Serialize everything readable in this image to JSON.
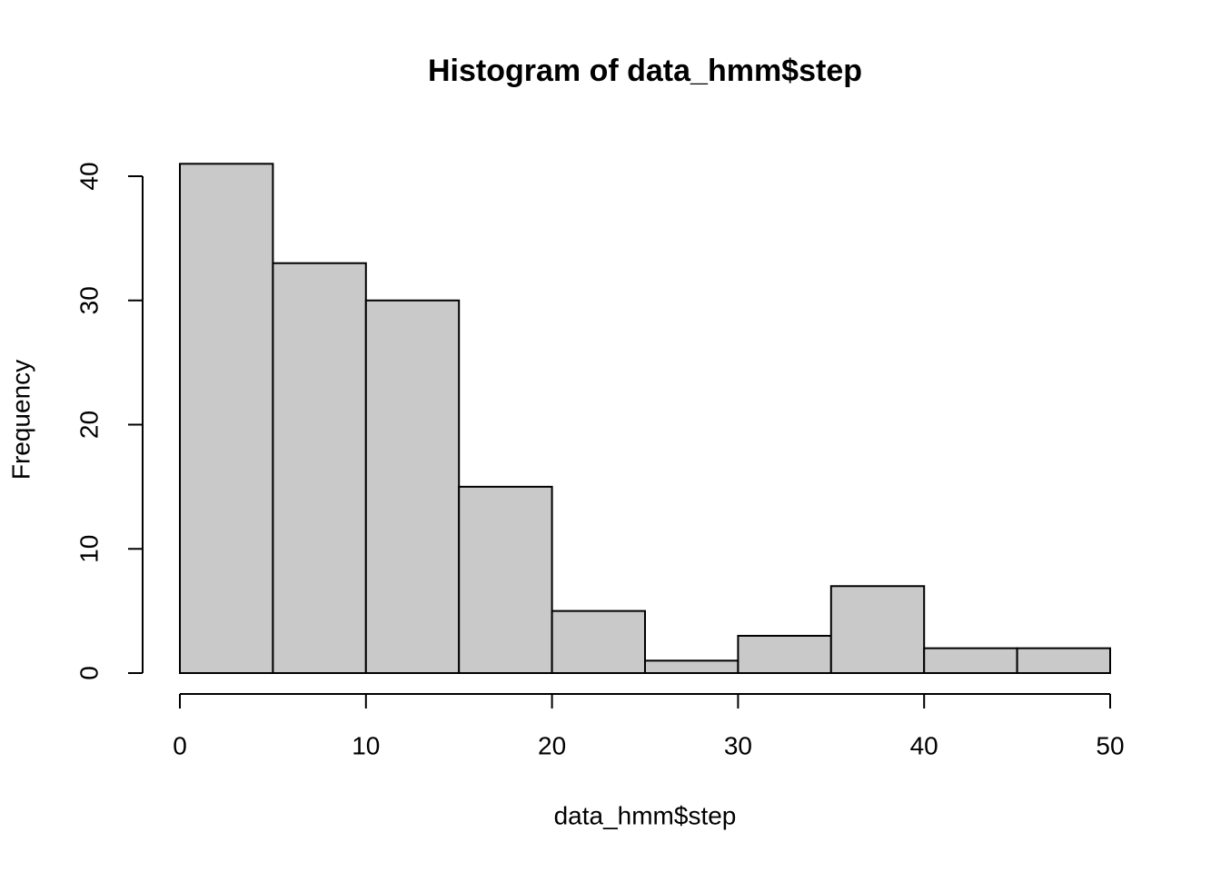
{
  "chart_data": {
    "type": "histogram",
    "title": "Histogram of data_hmm$step",
    "x_label": "data_hmm$step",
    "y_label": "Frequency",
    "bins": [
      0,
      5,
      10,
      15,
      20,
      25,
      30,
      35,
      40,
      45,
      50
    ],
    "counts": [
      41,
      33,
      30,
      15,
      5,
      1,
      3,
      7,
      2,
      2
    ],
    "color": "#c9c9c9",
    "xlim": [
      0,
      50
    ],
    "xticks": [
      0,
      10,
      20,
      30,
      40,
      50
    ],
    "ylim": [
      0,
      40
    ],
    "yticks": [
      0,
      10,
      20,
      30,
      40
    ]
  }
}
